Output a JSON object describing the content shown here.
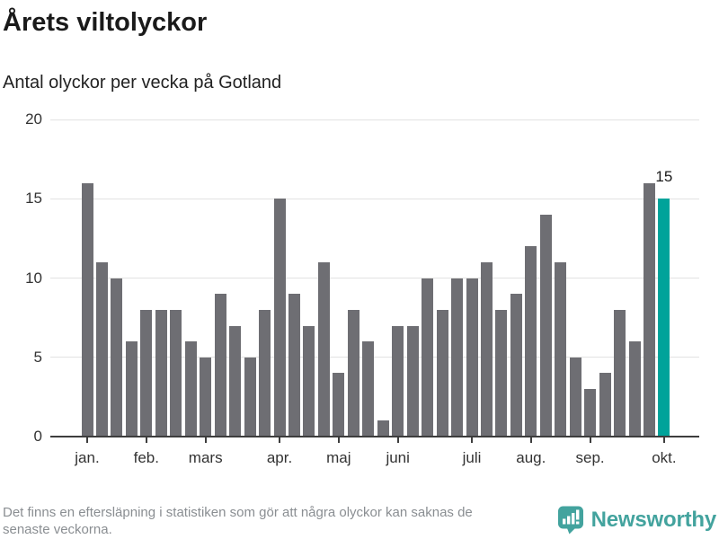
{
  "chart_data": {
    "type": "bar",
    "title": "Årets viltolyckor",
    "subtitle": "Antal olyckor per vecka på Gotland",
    "x_unit": "vecka",
    "values": [
      16,
      11,
      10,
      6,
      8,
      8,
      8,
      6,
      5,
      9,
      7,
      5,
      8,
      15,
      9,
      7,
      11,
      4,
      8,
      6,
      1,
      7,
      7,
      10,
      8,
      10,
      10,
      11,
      8,
      9,
      12,
      14,
      11,
      5,
      3,
      4,
      8,
      6,
      16,
      15
    ],
    "month_labels": [
      "jan.",
      "feb.",
      "mars",
      "apr.",
      "maj",
      "juni",
      "juli",
      "aug.",
      "sep.",
      "okt."
    ],
    "month_tick_bar_indices": [
      0,
      4,
      8,
      13,
      17,
      21,
      26,
      30,
      34,
      39
    ],
    "yticks": [
      0,
      5,
      10,
      15,
      20
    ],
    "ylim": [
      0,
      20
    ],
    "grid": true,
    "highlight_index": 39,
    "highlight_label": "15"
  },
  "footer": {
    "note_line1": "Det finns en eftersläpning i statistiken som gör att några olyckor kan saknas de",
    "note_line2": "senaste veckorna.",
    "logo_text": "Newsworthy"
  },
  "colors": {
    "text": "#1a1a1a",
    "axis_text": "#333333",
    "bar_gray": "#6e6e73",
    "bar_highlight": "#00a39a",
    "gridline": "#e2e2e2",
    "axis_line": "#3d3d3d",
    "footnote_text": "#8a8e92",
    "logo_teal": "#43a39e"
  }
}
